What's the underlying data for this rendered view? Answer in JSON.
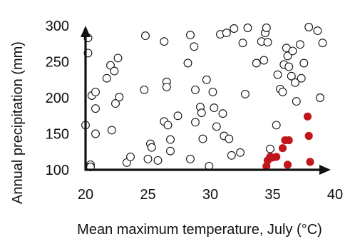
{
  "chart_data": {
    "type": "scatter",
    "title": "",
    "xlabel": "Mean maximum temperature, July (°C)",
    "ylabel": "Annual precipitation (mm)",
    "xlim": [
      20,
      40
    ],
    "ylim": [
      100,
      300
    ],
    "xticks": [
      20,
      25,
      30,
      35,
      40
    ],
    "yticks": [
      100,
      150,
      200,
      250,
      300
    ],
    "colors": {
      "axis": "#111111",
      "open_marker_stroke": "#111111",
      "filled_marker": "#c0161c"
    },
    "series": [
      {
        "marker": "open-circle",
        "points": [
          [
            20.2,
            283
          ],
          [
            20.2,
            262
          ],
          [
            20.0,
            162
          ],
          [
            20.4,
            107
          ],
          [
            20.4,
            104
          ],
          [
            20.5,
            203
          ],
          [
            20.8,
            208
          ],
          [
            20.8,
            185
          ],
          [
            20.8,
            150
          ],
          [
            21.7,
            227
          ],
          [
            22.0,
            245
          ],
          [
            22.3,
            237
          ],
          [
            22.4,
            192
          ],
          [
            22.1,
            155
          ],
          [
            22.6,
            255
          ],
          [
            22.7,
            201
          ],
          [
            23.3,
            110
          ],
          [
            23.6,
            118
          ],
          [
            24.8,
            286
          ],
          [
            24.7,
            211
          ],
          [
            25.2,
            136
          ],
          [
            25.3,
            131
          ],
          [
            25.0,
            115
          ],
          [
            25.8,
            113
          ],
          [
            26.3,
            278
          ],
          [
            26.5,
            222
          ],
          [
            26.5,
            215
          ],
          [
            26.3,
            167
          ],
          [
            26.6,
            162
          ],
          [
            26.8,
            142
          ],
          [
            26.8,
            126
          ],
          [
            27.4,
            175
          ],
          [
            28.2,
            248
          ],
          [
            28.4,
            287
          ],
          [
            28.4,
            115
          ],
          [
            28.7,
            271
          ],
          [
            28.8,
            211
          ],
          [
            28.8,
            166
          ],
          [
            29.2,
            187
          ],
          [
            29.3,
            179
          ],
          [
            29.4,
            143
          ],
          [
            29.7,
            225
          ],
          [
            29.9,
            105
          ],
          [
            30.2,
            208
          ],
          [
            30.3,
            186
          ],
          [
            30.5,
            160
          ],
          [
            30.8,
            288
          ],
          [
            31.0,
            178
          ],
          [
            31.1,
            147
          ],
          [
            31.3,
            290
          ],
          [
            31.5,
            143
          ],
          [
            31.7,
            120
          ],
          [
            31.9,
            296
          ],
          [
            32.4,
            124
          ],
          [
            32.6,
            276
          ],
          [
            32.8,
            205
          ],
          [
            33.0,
            297
          ],
          [
            33.7,
            248
          ],
          [
            34.1,
            278
          ],
          [
            34.3,
            252
          ],
          [
            34.4,
            290
          ],
          [
            34.5,
            297
          ],
          [
            34.6,
            277
          ],
          [
            34.8,
            129
          ],
          [
            35.3,
            162
          ],
          [
            35.4,
            232
          ],
          [
            35.6,
            212
          ],
          [
            35.8,
            208
          ],
          [
            35.9,
            246
          ],
          [
            36.1,
            269
          ],
          [
            36.2,
            258
          ],
          [
            36.3,
            243
          ],
          [
            36.5,
            230
          ],
          [
            36.6,
            265
          ],
          [
            36.8,
            221
          ],
          [
            36.9,
            195
          ],
          [
            37.2,
            274
          ],
          [
            37.3,
            227
          ],
          [
            37.5,
            248
          ],
          [
            37.9,
            298
          ],
          [
            38.6,
            293
          ],
          [
            38.8,
            200
          ],
          [
            39.0,
            276
          ]
        ]
      },
      {
        "marker": "filled-circle",
        "points": [
          [
            34.5,
            105
          ],
          [
            34.6,
            113
          ],
          [
            34.8,
            118
          ],
          [
            35.0,
            117
          ],
          [
            35.3,
            118
          ],
          [
            35.8,
            130
          ],
          [
            36.0,
            141
          ],
          [
            36.3,
            141
          ],
          [
            36.2,
            107
          ],
          [
            37.8,
            174
          ],
          [
            37.9,
            147
          ],
          [
            38.0,
            111
          ]
        ]
      }
    ]
  }
}
